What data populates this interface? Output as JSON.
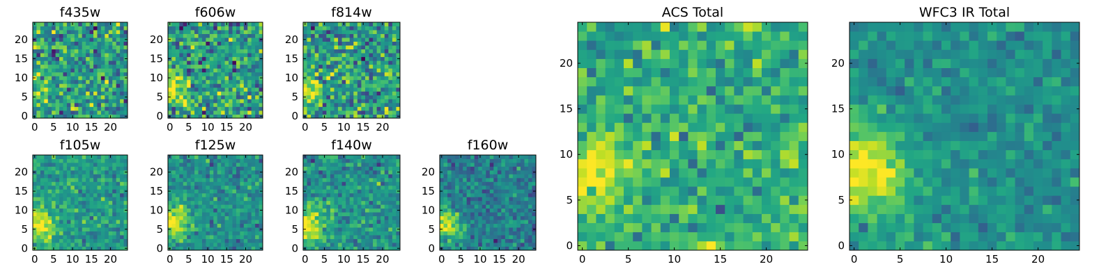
{
  "figure_title": "",
  "chart_data": [
    {
      "type": "heatmap",
      "title": "f435w",
      "xlabel": "",
      "ylabel": "",
      "xlim": [
        0,
        24
      ],
      "ylim": [
        0,
        24
      ],
      "x_ticks": [
        0,
        5,
        10,
        15,
        20
      ],
      "y_ticks": [
        0,
        5,
        10,
        15,
        20
      ],
      "grid_size": 25,
      "value_range": [
        0,
        1
      ],
      "colormap": "viridis",
      "seed": 11,
      "feature": {
        "x": 1,
        "y": 7,
        "sigma": 3,
        "amplitude": 0.2
      },
      "noise": 1.0,
      "base": 0.55,
      "values": []
    },
    {
      "type": "heatmap",
      "title": "f606w",
      "xlabel": "",
      "ylabel": "",
      "xlim": [
        0,
        24
      ],
      "ylim": [
        0,
        24
      ],
      "x_ticks": [
        0,
        5,
        10,
        15,
        20
      ],
      "y_ticks": [
        0,
        5,
        10,
        15,
        20
      ],
      "grid_size": 25,
      "value_range": [
        0,
        1
      ],
      "colormap": "viridis",
      "seed": 23,
      "feature": {
        "x": 0,
        "y": 7,
        "sigma": 3,
        "amplitude": 0.35
      },
      "noise": 1.0,
      "base": 0.55,
      "values": []
    },
    {
      "type": "heatmap",
      "title": "f814w",
      "xlabel": "",
      "ylabel": "",
      "xlim": [
        0,
        24
      ],
      "ylim": [
        0,
        24
      ],
      "x_ticks": [
        0,
        5,
        10,
        15,
        20
      ],
      "y_ticks": [
        0,
        5,
        10,
        15,
        20
      ],
      "grid_size": 25,
      "value_range": [
        0,
        1
      ],
      "colormap": "viridis",
      "seed": 37,
      "feature": {
        "x": 0,
        "y": 7,
        "sigma": 3,
        "amplitude": 0.4
      },
      "noise": 1.0,
      "base": 0.55,
      "values": []
    },
    {
      "type": "heatmap",
      "title": "f105w",
      "xlabel": "",
      "ylabel": "",
      "xlim": [
        0,
        24
      ],
      "ylim": [
        0,
        24
      ],
      "x_ticks": [
        0,
        5,
        10,
        15,
        20
      ],
      "y_ticks": [
        0,
        5,
        10,
        15,
        20
      ],
      "grid_size": 25,
      "value_range": [
        0,
        1
      ],
      "colormap": "viridis",
      "seed": 41,
      "feature": {
        "x": 1,
        "y": 6,
        "sigma": 3,
        "amplitude": 0.45
      },
      "noise": 0.6,
      "base": 0.55,
      "values": []
    },
    {
      "type": "heatmap",
      "title": "f125w",
      "xlabel": "",
      "ylabel": "",
      "xlim": [
        0,
        24
      ],
      "ylim": [
        0,
        24
      ],
      "x_ticks": [
        0,
        5,
        10,
        15,
        20
      ],
      "y_ticks": [
        0,
        5,
        10,
        15,
        20
      ],
      "grid_size": 25,
      "value_range": [
        0,
        1
      ],
      "colormap": "viridis",
      "seed": 53,
      "feature": {
        "x": 1,
        "y": 7,
        "sigma": 3,
        "amplitude": 0.5
      },
      "noise": 0.6,
      "base": 0.5,
      "values": []
    },
    {
      "type": "heatmap",
      "title": "f140w",
      "xlabel": "",
      "ylabel": "",
      "xlim": [
        0,
        24
      ],
      "ylim": [
        0,
        24
      ],
      "x_ticks": [
        0,
        5,
        10,
        15,
        20
      ],
      "y_ticks": [
        0,
        5,
        10,
        15,
        20
      ],
      "grid_size": 25,
      "value_range": [
        0,
        1
      ],
      "colormap": "viridis",
      "seed": 67,
      "feature": {
        "x": 1,
        "y": 6,
        "sigma": 3,
        "amplitude": 0.5
      },
      "noise": 0.6,
      "base": 0.5,
      "values": []
    },
    {
      "type": "heatmap",
      "title": "f160w",
      "xlabel": "",
      "ylabel": "",
      "xlim": [
        0,
        24
      ],
      "ylim": [
        0,
        24
      ],
      "x_ticks": [
        0,
        5,
        10,
        15,
        20
      ],
      "y_ticks": [
        0,
        5,
        10,
        15,
        20
      ],
      "grid_size": 25,
      "value_range": [
        0,
        1
      ],
      "colormap": "viridis",
      "seed": 79,
      "feature": {
        "x": 1,
        "y": 6,
        "sigma": 3,
        "amplitude": 0.55
      },
      "noise": 0.6,
      "base": 0.42,
      "values": []
    },
    {
      "type": "heatmap",
      "title": "ACS Total",
      "xlabel": "",
      "ylabel": "",
      "xlim": [
        0,
        24
      ],
      "ylim": [
        0,
        24
      ],
      "x_ticks": [
        0,
        5,
        10,
        15,
        20
      ],
      "y_ticks": [
        0,
        5,
        10,
        15,
        20
      ],
      "grid_size": 25,
      "value_range": [
        0,
        1
      ],
      "colormap": "viridis",
      "seed": 97,
      "feature": {
        "x": 1,
        "y": 8,
        "sigma": 3,
        "amplitude": 0.35
      },
      "noise": 0.7,
      "base": 0.62,
      "values": []
    },
    {
      "type": "heatmap",
      "title": "WFC3 IR Total",
      "xlabel": "",
      "ylabel": "",
      "xlim": [
        0,
        24
      ],
      "ylim": [
        0,
        24
      ],
      "x_ticks": [
        0,
        5,
        10,
        15,
        20
      ],
      "y_ticks": [
        0,
        5,
        10,
        15,
        20
      ],
      "grid_size": 25,
      "value_range": [
        0,
        1
      ],
      "colormap": "viridis",
      "seed": 113,
      "feature": {
        "x": 1,
        "y": 8,
        "sigma": 3.5,
        "amplitude": 0.5
      },
      "noise": 0.45,
      "base": 0.5,
      "values": []
    }
  ]
}
